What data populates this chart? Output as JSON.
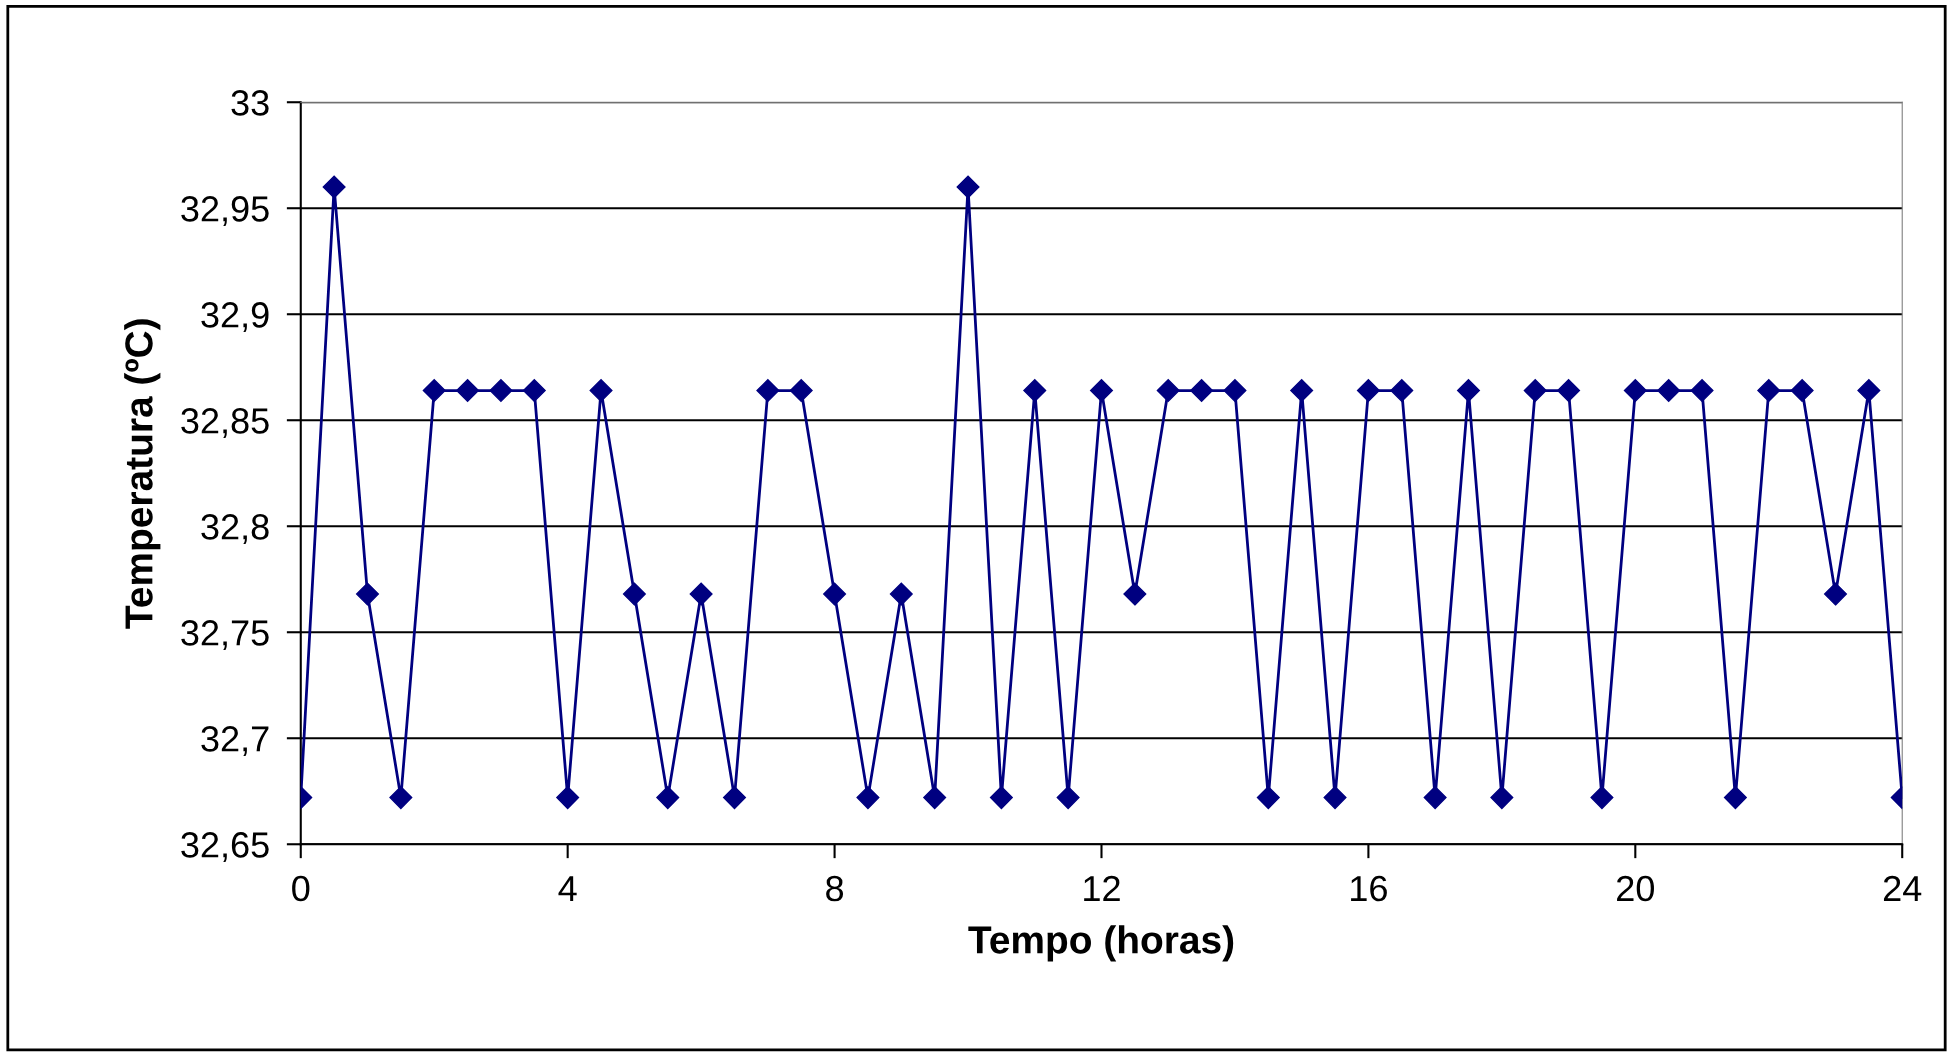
{
  "chart_data": {
    "type": "line",
    "xlabel": "Tempo (horas)",
    "ylabel": "Temperatura (ºC)",
    "x": [
      0,
      0.5,
      1,
      1.5,
      2,
      2.5,
      3,
      3.5,
      4,
      4.5,
      5,
      5.5,
      6,
      6.5,
      7,
      7.5,
      8,
      8.5,
      9,
      9.5,
      10,
      10.5,
      11,
      11.5,
      12,
      12.5,
      13,
      13.5,
      14,
      14.5,
      15,
      15.5,
      16,
      16.5,
      17,
      17.5,
      18,
      18.5,
      19,
      19.5,
      20,
      20.5,
      21,
      21.5,
      22,
      22.5,
      23,
      23.5,
      24
    ],
    "series": [
      {
        "color": "#000080",
        "values": [
          32.672,
          32.96,
          32.768,
          32.672,
          32.864,
          32.864,
          32.864,
          32.864,
          32.672,
          32.864,
          32.768,
          32.672,
          32.768,
          32.672,
          32.864,
          32.864,
          32.768,
          32.672,
          32.768,
          32.672,
          32.96,
          32.672,
          32.864,
          32.672,
          32.864,
          32.768,
          32.864,
          32.864,
          32.864,
          32.672,
          32.864,
          32.672,
          32.864,
          32.864,
          32.672,
          32.864,
          32.672,
          32.864,
          32.864,
          32.672,
          32.864,
          32.864,
          32.864,
          32.672,
          32.864,
          32.864,
          32.768,
          32.864,
          32.672
        ]
      }
    ],
    "xlim": [
      0,
      24
    ],
    "xticks": [
      0,
      4,
      8,
      12,
      16,
      20,
      24
    ],
    "ylim": [
      32.65,
      33
    ],
    "yticks": [
      {
        "value": 32.65,
        "label": "32,65"
      },
      {
        "value": 32.7,
        "label": "32,7"
      },
      {
        "value": 32.75,
        "label": "32,75"
      },
      {
        "value": 32.8,
        "label": "32,8"
      },
      {
        "value": 32.85,
        "label": "32,85"
      },
      {
        "value": 32.9,
        "label": "32,9"
      },
      {
        "value": 32.95,
        "label": "32,95"
      },
      {
        "value": 33,
        "label": "33"
      }
    ],
    "grid": "y",
    "marker": "diamond",
    "line_style": "solid"
  }
}
